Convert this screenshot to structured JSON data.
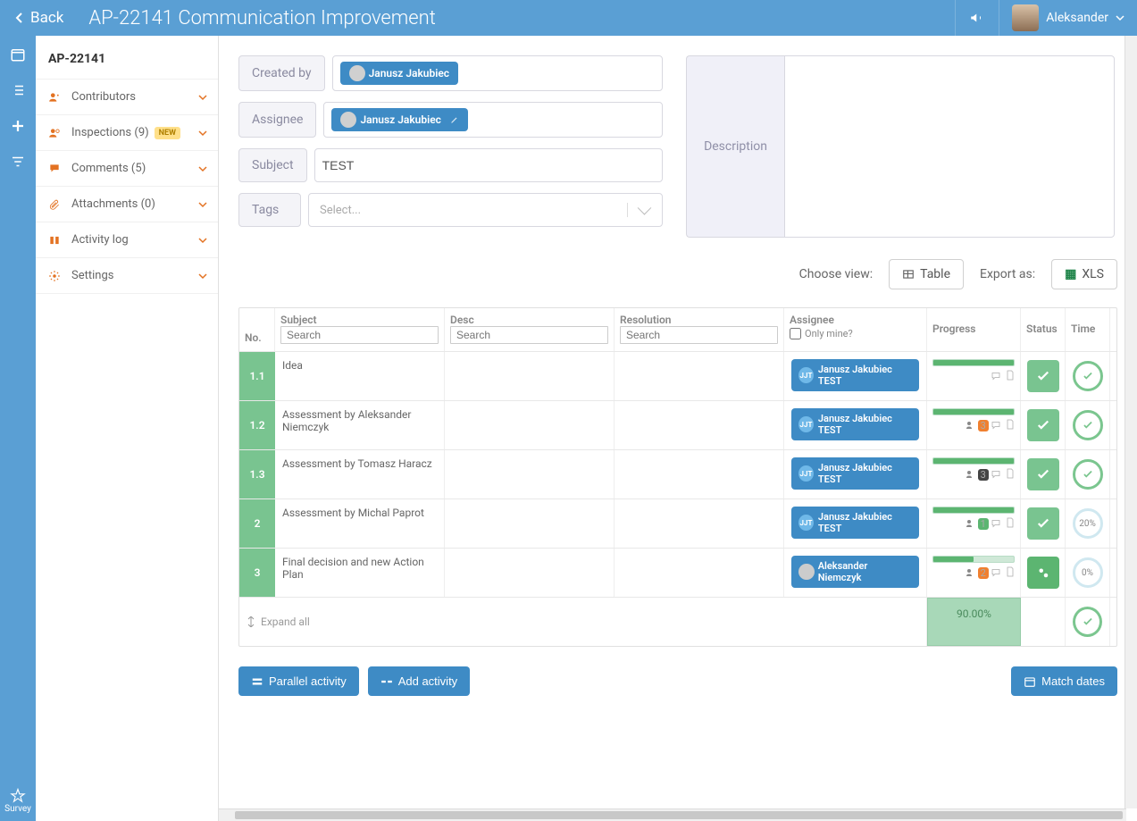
{
  "header": {
    "back": "Back",
    "title": "AP-22141 Communication Improvement",
    "user": "Aleksander"
  },
  "sidebar": {
    "code": "AP-22141",
    "items": {
      "contributors": "Contributors",
      "inspections": "Inspections (9)",
      "inspections_badge": "NEW",
      "comments": "Comments (5)",
      "attachments": "Attachments (0)",
      "activity": "Activity log",
      "settings": "Settings"
    }
  },
  "form": {
    "created_by_label": "Created by",
    "created_by": "Janusz Jakubiec",
    "assignee_label": "Assignee",
    "assignee": "Janusz Jakubiec",
    "subject_label": "Subject",
    "subject_value": "TEST",
    "tags_label": "Tags",
    "tags_placeholder": "Select...",
    "description_label": "Description"
  },
  "controls": {
    "choose_view": "Choose view:",
    "table": "Table",
    "export_as": "Export as:",
    "xls": "XLS"
  },
  "columns": {
    "no": "No.",
    "subject": "Subject",
    "desc": "Desc",
    "resolution": "Resolution",
    "assignee": "Assignee",
    "only_mine": "Only mine?",
    "progress": "Progress",
    "status": "Status",
    "time": "Time",
    "search": "Search"
  },
  "rows": [
    {
      "no": "1.1",
      "subject": "Idea",
      "assignee": "Janusz Jakubiec TEST",
      "assignee_badge": "JJT",
      "progress": 100,
      "status_icon": "check",
      "time_icon": "check",
      "people": null,
      "comments": null
    },
    {
      "no": "1.2",
      "subject": "Assessment by Aleksander Niemczyk",
      "assignee": "Janusz Jakubiec TEST",
      "assignee_badge": "JJT",
      "progress": 100,
      "status_icon": "check",
      "time_icon": "check",
      "people": "3",
      "people_color": "orange",
      "comments": null
    },
    {
      "no": "1.3",
      "subject": "Assessment by Tomasz Haracz",
      "assignee": "Janusz Jakubiec TEST",
      "assignee_badge": "JJT",
      "progress": 100,
      "status_icon": "check",
      "time_icon": "check",
      "people": "3",
      "people_color": "dark",
      "comments": null
    },
    {
      "no": "2",
      "subject": "Assessment by Michal Paprot",
      "assignee": "Janusz Jakubiec TEST",
      "assignee_badge": "JJT",
      "progress": 100,
      "status_icon": "check",
      "time_icon": "20%",
      "people": "1",
      "people_color": "green",
      "comments": null
    },
    {
      "no": "3",
      "subject": "Final decision and new Action Plan",
      "assignee": "Aleksander Niemczyk",
      "assignee_badge": "",
      "progress": 50,
      "status_icon": "gear",
      "time_icon": "0%",
      "people": "2",
      "people_color": "orange",
      "comments": null
    }
  ],
  "footer": {
    "expand": "Expand all",
    "total_progress": "90.00%"
  },
  "actions": {
    "parallel": "Parallel activity",
    "add": "Add activity",
    "match": "Match dates"
  },
  "survey": "Survey"
}
